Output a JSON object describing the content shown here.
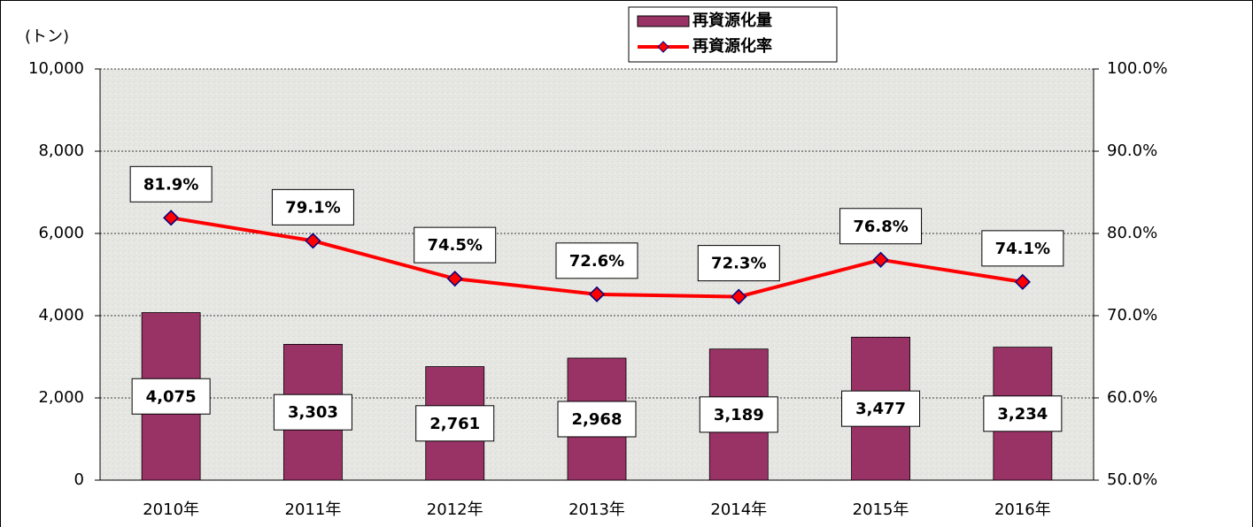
{
  "chart_data": {
    "type": "bar-line",
    "y_axis_label": "(トン)",
    "categories": [
      "2010年",
      "2011年",
      "2012年",
      "2013年",
      "2014年",
      "2015年",
      "2016年"
    ],
    "series": [
      {
        "name": "再資源化量",
        "type": "bar",
        "color": "#993366",
        "values": [
          4075,
          3303,
          2761,
          2968,
          3189,
          3477,
          3234
        ],
        "value_labels": [
          "4,075",
          "3,303",
          "2,761",
          "2,968",
          "3,189",
          "3,477",
          "3,234"
        ]
      },
      {
        "name": "再資源化率",
        "type": "line",
        "axis": "y2",
        "color": "#ff0000",
        "marker_color": "#ff0000",
        "marker_edge": "#000080",
        "values": [
          81.9,
          79.1,
          74.5,
          72.6,
          72.3,
          76.8,
          74.1
        ],
        "value_labels": [
          "81.9%",
          "79.1%",
          "74.5%",
          "72.6%",
          "72.3%",
          "76.8%",
          "74.1%"
        ]
      }
    ],
    "ylim": [
      0,
      10000
    ],
    "yticks": [
      0,
      {
        "value": 2000,
        "label": "2,000"
      },
      {
        "value": 4000,
        "label": "4,000"
      },
      {
        "value": 6000,
        "label": "6,000"
      },
      {
        "value": 8000,
        "label": "8,000"
      },
      {
        "value": 10000,
        "label": "10,000"
      }
    ],
    "y2lim": [
      50,
      100
    ],
    "y2ticks": [
      {
        "value": 50,
        "label": "50.0%"
      },
      {
        "value": 60,
        "label": "60.0%"
      },
      {
        "value": 70,
        "label": "70.0%"
      },
      {
        "value": 80,
        "label": "80.0%"
      },
      {
        "value": 90,
        "label": "90.0%"
      },
      {
        "value": 100,
        "label": "100.0%"
      }
    ],
    "grid": true,
    "legend": "top"
  }
}
